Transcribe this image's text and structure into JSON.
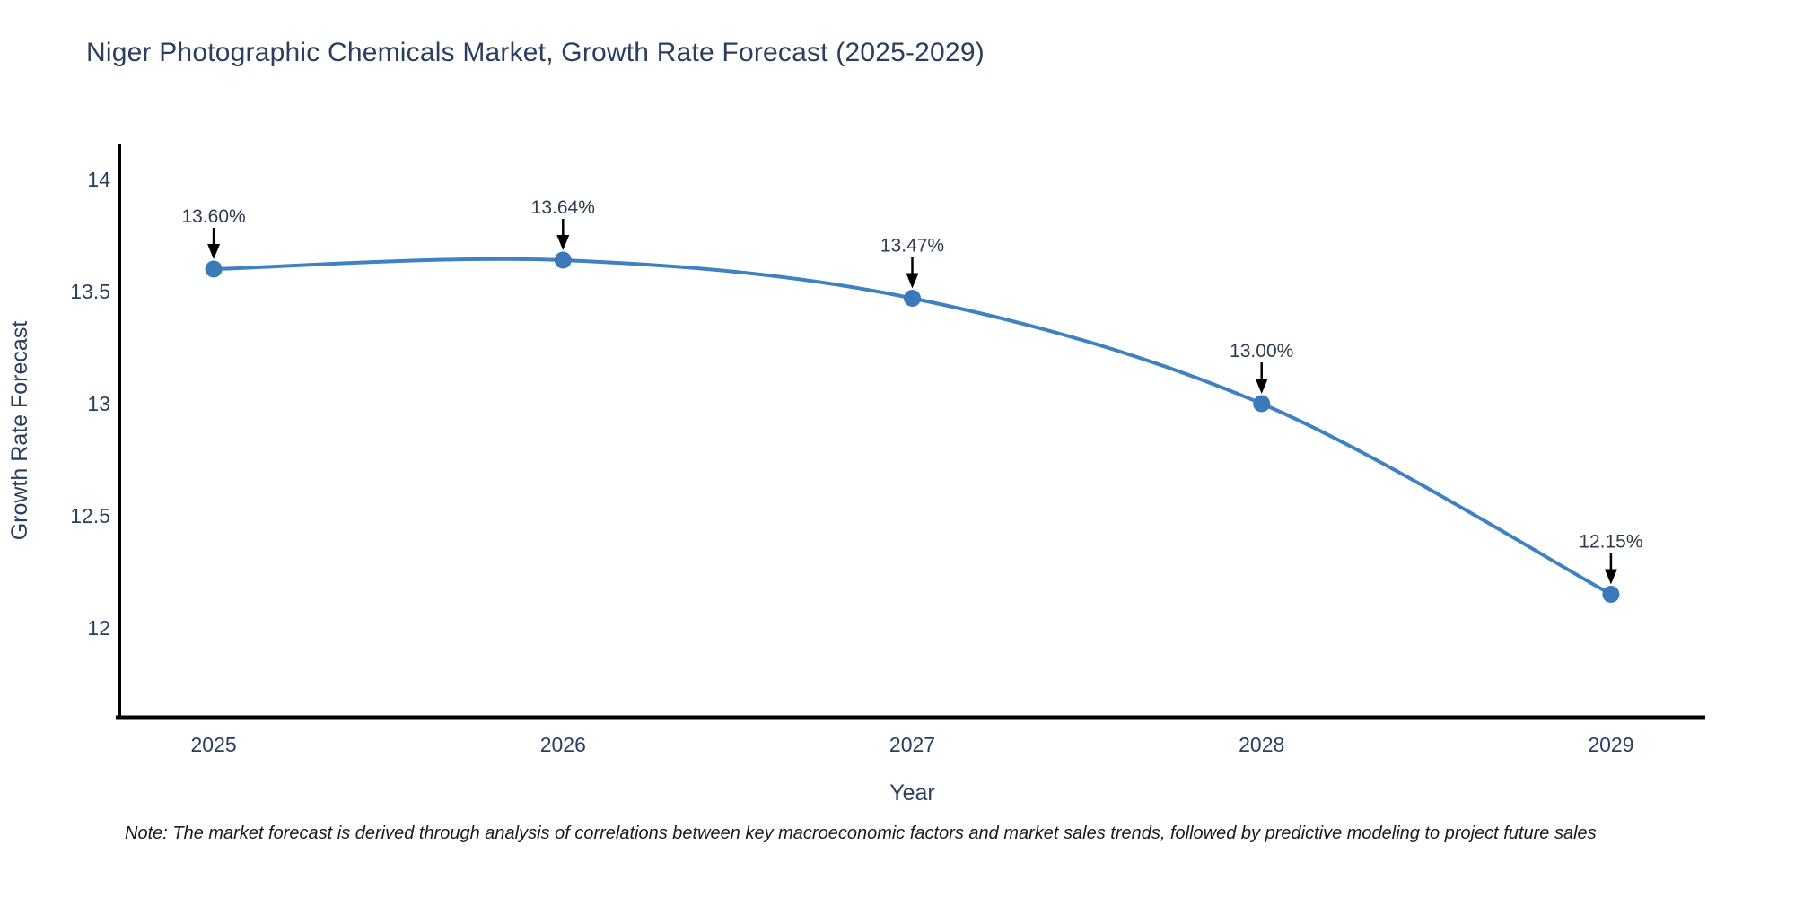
{
  "page": {
    "note": "Note: The market forecast is derived through analysis of correlations between key macroeconomic factors and market sales trends, followed by predictive modeling to project future sales"
  },
  "colors": {
    "background": "#ffffff",
    "title_text": "#2a3f5f",
    "tick_text": "#2a3f5f",
    "axis_line": "#000000",
    "trend_line": "#4081c1",
    "marker_fill": "#3a79ba",
    "annotation_text": "#2f3b4c",
    "annotation_arrow": "#000000",
    "note_text": "#1a1a1a"
  },
  "chart_data": {
    "type": "line",
    "title": "Niger Photographic Chemicals Market, Growth Rate Forecast (2025-2029)",
    "xlabel": "Year",
    "ylabel": "Growth Rate Forecast",
    "x": [
      2025,
      2026,
      2027,
      2028,
      2029
    ],
    "series": [
      {
        "name": "Growth Rate Forecast",
        "values": [
          13.6,
          13.64,
          13.47,
          13.0,
          12.15
        ]
      }
    ],
    "point_labels": [
      "13.60%",
      "13.64%",
      "13.47%",
      "13.00%",
      "12.15%"
    ],
    "xtick_labels": [
      "2025",
      "2026",
      "2027",
      "2028",
      "2029"
    ],
    "ytick_values": [
      12,
      12.5,
      13,
      13.5,
      14
    ],
    "ytick_labels": [
      "12",
      "12.5",
      "13",
      "13.5",
      "14"
    ],
    "xlim": [
      2024.73,
      2029.27
    ],
    "ylim": [
      11.6,
      14.16
    ],
    "grid": false,
    "legend": false,
    "line_shape": "spline",
    "markers": true,
    "annotations": "value labels with down arrows at each data point"
  }
}
